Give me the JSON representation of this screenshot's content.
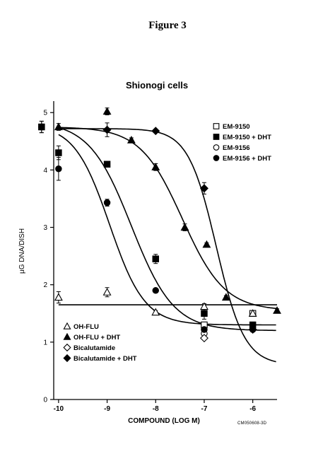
{
  "figure_label": "Figure 3",
  "code_note": "CM050608-3D",
  "chart_data": {
    "type": "scatter",
    "title": "Shionogi cells",
    "xlabel": "COMPOUND (LOG M)",
    "ylabel": "µG DNA/DISH",
    "xlim": [
      -10.1,
      -5.5
    ],
    "ylim": [
      0,
      5.2
    ],
    "x_ticks": [
      -10,
      -9,
      -8,
      -7,
      -6
    ],
    "x_tick_labels": [
      "-10",
      "-9",
      "-8",
      "-7",
      "-6"
    ],
    "y_ticks": [
      0,
      1,
      2,
      3,
      4,
      5
    ],
    "y_tick_labels": [
      "0",
      "1",
      "2",
      "3",
      "4",
      "5"
    ],
    "grid": false,
    "legend_placement": [
      "top-right",
      "bottom-left"
    ],
    "series": [
      {
        "name": "EM-9150",
        "marker": "square-open",
        "points": [
          [
            -7,
            1.3
          ],
          [
            -6,
            1.5
          ]
        ]
      },
      {
        "name": "EM-9150 + DHT",
        "marker": "square-filled",
        "points": [
          [
            -10.35,
            4.75
          ],
          [
            -10,
            4.3
          ],
          [
            -9,
            4.1
          ],
          [
            -8,
            2.45
          ],
          [
            -7,
            1.5
          ],
          [
            -6,
            1.3
          ]
        ],
        "errors": [
          0.1,
          0.12,
          0.05,
          0.08,
          0.1,
          0.05
        ],
        "fit": {
          "top": 4.85,
          "bottom": 1.2,
          "log_ic50": -8.5,
          "hill": 1.0
        }
      },
      {
        "name": "EM-9156",
        "marker": "circle-open",
        "points": [
          [
            -7,
            1.15
          ]
        ]
      },
      {
        "name": "EM-9156 + DHT",
        "marker": "circle-filled",
        "points": [
          [
            -10.35,
            4.75
          ],
          [
            -10,
            4.02
          ],
          [
            -9,
            3.43
          ],
          [
            -8,
            1.9
          ],
          [
            -7,
            1.22
          ],
          [
            -6,
            1.22
          ]
        ],
        "errors": [
          0.1,
          0.2,
          0.06,
          0.03,
          0.04,
          0.04
        ],
        "fit": {
          "top": 4.8,
          "bottom": 1.3,
          "log_ic50": -8.95,
          "hill": 1.2
        }
      },
      {
        "name": "OH-FLU",
        "marker": "triangle-open",
        "points": [
          [
            -10,
            1.78
          ],
          [
            -9,
            1.87
          ],
          [
            -8,
            1.52
          ],
          [
            -7,
            1.62
          ],
          [
            -6,
            1.5
          ]
        ],
        "errors": [
          0.1,
          0.08,
          0.03,
          0.05,
          0.05
        ],
        "fit": {
          "type": "flat",
          "value": 1.65
        }
      },
      {
        "name": "OH-FLU + DHT",
        "marker": "triangle-filled",
        "points": [
          [
            -10,
            4.75
          ],
          [
            -9,
            5.02
          ],
          [
            -8.5,
            4.52
          ],
          [
            -8,
            4.05
          ],
          [
            -7.4,
            3.0
          ],
          [
            -6.95,
            2.7
          ],
          [
            -6.55,
            1.78
          ],
          [
            -5.5,
            1.55
          ]
        ],
        "errors": [
          0.06,
          0.06,
          0.04,
          0.06,
          0.06,
          0.03,
          0.03,
          0.03
        ],
        "fit": {
          "top": 4.75,
          "bottom": 1.55,
          "log_ic50": -7.45,
          "hill": 1.0
        }
      },
      {
        "name": "Bicalutamide",
        "marker": "diamond-open",
        "points": [
          [
            -7,
            1.07
          ]
        ]
      },
      {
        "name": "Bicalutamide + DHT",
        "marker": "diamond-filled",
        "points": [
          [
            -9,
            4.7
          ],
          [
            -8,
            4.68
          ],
          [
            -7,
            3.68
          ],
          [
            -6,
            1.22
          ]
        ],
        "errors": [
          0.12,
          0.03,
          0.1,
          0.04
        ],
        "fit": {
          "top": 4.72,
          "bottom": 0.6,
          "log_ic50": -6.75,
          "hill": 1.5
        }
      }
    ],
    "legend_top": [
      "EM-9150",
      "EM-9150 + DHT",
      "EM-9156",
      "EM-9156 + DHT"
    ],
    "legend_bottom": [
      "OH-FLU",
      "OH-FLU + DHT",
      "Bicalutamide",
      "Bicalutamide + DHT"
    ]
  }
}
